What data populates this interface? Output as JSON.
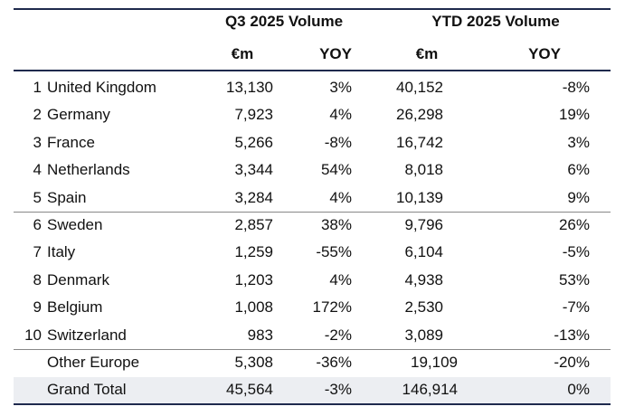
{
  "table": {
    "group_headers": [
      "Q3 2025  Volume",
      "YTD 2025 Volume"
    ],
    "sub_headers": [
      "€m",
      "YOY",
      "€m",
      "YOY"
    ],
    "rows": [
      [
        "1",
        "United Kingdom",
        "13,130",
        "3%",
        "40,152",
        "-8%"
      ],
      [
        "2",
        "Germany",
        "7,923",
        "4%",
        "26,298",
        "19%"
      ],
      [
        "3",
        "France",
        "5,266",
        "-8%",
        "16,742",
        "3%"
      ],
      [
        "4",
        "Netherlands",
        "3,344",
        "54%",
        "8,018",
        "6%"
      ],
      [
        "5",
        "Spain",
        "3,284",
        "4%",
        "10,139",
        "9%"
      ],
      [
        "6",
        "Sweden",
        "2,857",
        "38%",
        "9,796",
        "26%"
      ],
      [
        "7",
        "Italy",
        "1,259",
        "-55%",
        "6,104",
        "-5%"
      ],
      [
        "8",
        "Denmark",
        "1,203",
        "4%",
        "4,938",
        "53%"
      ],
      [
        "9",
        "Belgium",
        "1,008",
        "172%",
        "2,530",
        "-7%"
      ],
      [
        "10",
        "Switzerland",
        "983",
        "-2%",
        "3,089",
        "-13%"
      ]
    ],
    "summary_rows": [
      [
        "Other Europe",
        "5,308",
        "-36%",
        "19,109",
        "-20%"
      ],
      [
        "Grand Total",
        "45,564",
        "-3%",
        "146,914",
        "0%"
      ]
    ]
  }
}
